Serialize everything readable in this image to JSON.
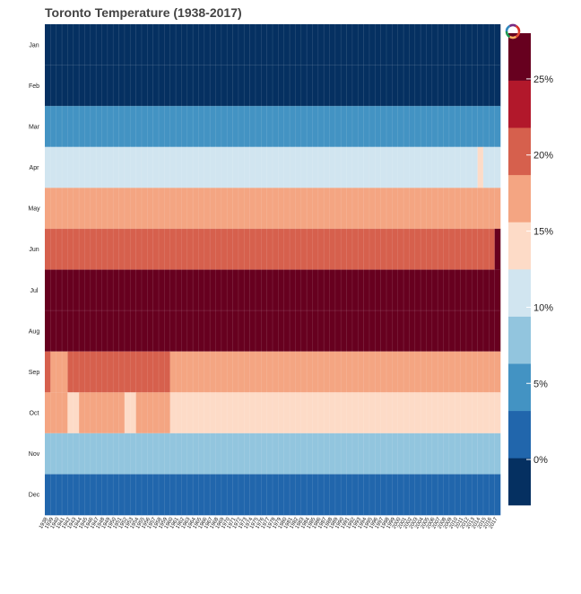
{
  "chart_data": {
    "type": "heatmap",
    "title": "Toronto Temperature (1938-2017)",
    "x_tick_labels": [
      "1938",
      "1939",
      "1940",
      "1941",
      "1942",
      "1943",
      "1944",
      "1945",
      "1946",
      "1947",
      "1948",
      "1949",
      "1950",
      "1951",
      "1952",
      "1953",
      "1954",
      "1955",
      "1956",
      "1957",
      "1958",
      "1959",
      "1960",
      "1961",
      "1962",
      "1963",
      "1964",
      "1965",
      "1966",
      "1967",
      "1968",
      "1969",
      "1970",
      "1971",
      "1972",
      "1973",
      "1974",
      "1975",
      "1976",
      "1977",
      "1978",
      "1979",
      "1980",
      "1981",
      "1982",
      "1983",
      "1984",
      "1985",
      "1986",
      "1987",
      "1988",
      "1989",
      "1990",
      "1991",
      "1992",
      "1993",
      "1994",
      "1995",
      "1996",
      "1997",
      "1998",
      "1999",
      "2000",
      "2001",
      "2002",
      "2003",
      "2004",
      "2005",
      "2006",
      "2007",
      "2008",
      "2009",
      "2010",
      "2011",
      "2012",
      "2013",
      "2014",
      "2015",
      "2016",
      "2017"
    ],
    "y_tick_labels": [
      "Jan",
      "Feb",
      "Mar",
      "Apr",
      "May",
      "Jun",
      "Jul",
      "Aug",
      "Sep",
      "Oct",
      "Nov",
      "Dec"
    ],
    "colorbar": {
      "colors": [
        "#053061",
        "#2166ac",
        "#4393c3",
        "#92c5de",
        "#d1e5f0",
        "#fddbc7",
        "#f4a582",
        "#d6604d",
        "#b2182b",
        "#67001f"
      ],
      "range": [
        -3,
        28
      ],
      "ticks": [
        0,
        5,
        10,
        15,
        20,
        25
      ],
      "tick_labels": [
        "0%",
        "5%",
        "10%",
        "15%",
        "20%",
        "25%"
      ]
    },
    "grid": true,
    "toolbar_logo": "bokeh-logo-icon",
    "months": [
      {
        "name": "Jan",
        "values": [
          -3,
          -3,
          -3,
          -3,
          -3,
          -3,
          -3,
          -3,
          -3,
          -3,
          -3,
          -3,
          -3,
          -3,
          -3,
          -3,
          -3,
          -3,
          -3,
          -3,
          -3,
          -3,
          -3,
          -3,
          -3,
          -3,
          -3,
          -3,
          -3,
          -3,
          -3,
          -3,
          -3,
          -3,
          -3,
          -3,
          -3,
          -3,
          -3,
          -3,
          -3,
          -3,
          -3,
          -3,
          -3,
          -3,
          -3,
          -3,
          -3,
          -3,
          -3,
          -3,
          -3,
          -3,
          -3,
          -3,
          -3,
          -3,
          -3,
          -3,
          -3,
          -3,
          -3,
          -3,
          -3,
          -3,
          -3,
          -3,
          -3,
          -3,
          -3,
          -3,
          -3,
          -3,
          -3,
          -3,
          -3,
          -3,
          -3,
          -3
        ]
      },
      {
        "name": "Feb",
        "values": [
          -3,
          -3,
          -3,
          -3,
          -3,
          -3,
          -3,
          -3,
          -3,
          -3,
          -3,
          -3,
          -3,
          -3,
          -3,
          -3,
          -3,
          -3,
          -3,
          -3,
          -3,
          -3,
          -3,
          -3,
          -3,
          -3,
          -3,
          -3,
          -3,
          -3,
          -3,
          -3,
          -3,
          -3,
          -3,
          -3,
          -3,
          -3,
          -3,
          -3,
          -3,
          -3,
          -3,
          -3,
          -3,
          -3,
          -3,
          -3,
          -3,
          -3,
          -3,
          -3,
          -3,
          -3,
          -3,
          -3,
          -3,
          -3,
          -3,
          -3,
          -3,
          -3,
          -3,
          -3,
          -3,
          -3,
          -3,
          -3,
          -3,
          -3,
          -3,
          -3,
          -3,
          -3,
          -3,
          -3,
          -3,
          -3,
          -3,
          -3
        ]
      },
      {
        "name": "Mar",
        "values": [
          4,
          4,
          4,
          4,
          4,
          4,
          4,
          4,
          4,
          4,
          4,
          4,
          4,
          4,
          4,
          4,
          4,
          4,
          4,
          4,
          4,
          4,
          4,
          4,
          4,
          4,
          4,
          4,
          4,
          4,
          4,
          4,
          4,
          4,
          4,
          4,
          4,
          4,
          4,
          4,
          4,
          4,
          4,
          4,
          4,
          4,
          4,
          4,
          4,
          4,
          4,
          4,
          4,
          4,
          4,
          4,
          4,
          4,
          4,
          4,
          4,
          4,
          4,
          4,
          4,
          4,
          4,
          4,
          4,
          4,
          4,
          4,
          4,
          4,
          4,
          4,
          4,
          4,
          4,
          4
        ]
      },
      {
        "name": "Apr",
        "values": [
          10,
          10,
          10,
          10,
          10,
          10,
          10,
          10,
          10,
          10,
          10,
          10,
          10,
          10,
          10,
          10,
          10,
          10,
          10,
          10,
          10,
          10,
          10,
          10,
          10,
          10,
          10,
          10,
          10,
          10,
          10,
          10,
          10,
          10,
          10,
          10,
          10,
          10,
          10,
          10,
          10,
          10,
          10,
          10,
          10,
          10,
          10,
          10,
          10,
          10,
          10,
          10,
          10,
          10,
          10,
          10,
          10,
          10,
          10,
          10,
          10,
          10,
          10,
          10,
          10,
          10,
          10,
          10,
          10,
          10,
          10,
          10,
          10,
          10,
          10,
          10,
          14,
          10,
          10,
          10
        ]
      },
      {
        "name": "May",
        "values": [
          17,
          16,
          16,
          16,
          18,
          18,
          16,
          18,
          18,
          18,
          18,
          18,
          18,
          18,
          16,
          16,
          16,
          16,
          16,
          16,
          16,
          16,
          16,
          16,
          16,
          16,
          18,
          18,
          16,
          18,
          16,
          18,
          16,
          18,
          16,
          16,
          16,
          16,
          18,
          18,
          18,
          18,
          18,
          18,
          18,
          18,
          18,
          18,
          18,
          18,
          18,
          18,
          16,
          16,
          16,
          18,
          18,
          18,
          18,
          18,
          18,
          18,
          18,
          18,
          18,
          18,
          18,
          18,
          18,
          18,
          18,
          18,
          18,
          18,
          18,
          18,
          18,
          18,
          18,
          18
        ]
      },
      {
        "name": "Jun",
        "values": [
          21,
          21,
          21,
          21,
          21,
          21,
          21,
          21,
          21,
          21,
          21,
          21,
          21,
          21,
          21,
          21,
          21,
          21,
          21,
          21,
          21,
          21,
          21,
          21,
          21,
          21,
          21,
          21,
          21,
          21,
          21,
          21,
          21,
          21,
          21,
          21,
          21,
          21,
          21,
          21,
          21,
          21,
          21,
          21,
          21,
          21,
          21,
          21,
          21,
          21,
          21,
          21,
          21,
          21,
          21,
          21,
          21,
          21,
          21,
          21,
          21,
          21,
          21,
          21,
          21,
          21,
          21,
          21,
          21,
          21,
          21,
          21,
          21,
          21,
          21,
          21,
          21,
          21,
          21,
          26
        ]
      },
      {
        "name": "Jul",
        "values": [
          26,
          26,
          26,
          26,
          26,
          26,
          26,
          26,
          26,
          26,
          26,
          26,
          26,
          26,
          26,
          26,
          26,
          26,
          26,
          26,
          26,
          26,
          26,
          26,
          26,
          26,
          26,
          26,
          26,
          26,
          26,
          26,
          26,
          26,
          26,
          26,
          26,
          26,
          26,
          26,
          26,
          26,
          26,
          26,
          26,
          26,
          26,
          26,
          26,
          26,
          26,
          26,
          26,
          26,
          26,
          26,
          26,
          26,
          26,
          26,
          26,
          26,
          26,
          26,
          26,
          26,
          26,
          26,
          26,
          26,
          26,
          26,
          26,
          26,
          26,
          26,
          26,
          26,
          26,
          26
        ]
      },
      {
        "name": "Aug",
        "values": [
          26,
          26,
          26,
          26,
          26,
          26,
          26,
          26,
          26,
          26,
          26,
          26,
          26,
          26,
          26,
          26,
          26,
          26,
          26,
          26,
          26,
          26,
          26,
          26,
          26,
          26,
          26,
          26,
          26,
          26,
          26,
          26,
          26,
          26,
          26,
          26,
          26,
          26,
          26,
          26,
          26,
          26,
          26,
          26,
          26,
          26,
          26,
          26,
          26,
          26,
          26,
          26,
          26,
          26,
          26,
          26,
          26,
          26,
          26,
          26,
          26,
          26,
          26,
          26,
          26,
          26,
          26,
          26,
          26,
          26,
          26,
          26,
          26,
          26,
          26,
          26,
          26,
          26,
          26,
          26
        ]
      },
      {
        "name": "Sep",
        "values": [
          21,
          18,
          18,
          18,
          21,
          21,
          21,
          21,
          21,
          21,
          21,
          21,
          21,
          21,
          21,
          21,
          21,
          21,
          21,
          21,
          21,
          21,
          18,
          18,
          18,
          18,
          18,
          18,
          18,
          18,
          18,
          18,
          18,
          18,
          18,
          18,
          18,
          18,
          18,
          18,
          18,
          18,
          18,
          18,
          18,
          18,
          18,
          18,
          18,
          18,
          18,
          18,
          18,
          18,
          18,
          18,
          18,
          18,
          18,
          18,
          18,
          18,
          18,
          18,
          18,
          18,
          18,
          18,
          18,
          18,
          18,
          18,
          18,
          18,
          18,
          18,
          18,
          18,
          18,
          18
        ]
      },
      {
        "name": "Oct",
        "values": [
          16,
          16,
          16,
          16,
          14,
          14,
          16,
          16,
          16,
          16,
          16,
          16,
          16,
          16,
          14,
          14,
          16,
          16,
          16,
          16,
          16,
          16,
          14,
          14,
          14,
          14,
          14,
          14,
          14,
          14,
          14,
          14,
          14,
          14,
          14,
          14,
          14,
          14,
          14,
          14,
          14,
          14,
          14,
          14,
          14,
          14,
          14,
          14,
          14,
          14,
          14,
          14,
          14,
          14,
          14,
          14,
          14,
          14,
          14,
          14,
          14,
          14,
          14,
          14,
          14,
          14,
          14,
          14,
          14,
          14,
          14,
          14,
          14,
          14,
          14,
          14,
          14,
          14,
          14,
          14
        ]
      },
      {
        "name": "Nov",
        "values": [
          7,
          7,
          7,
          7,
          7,
          7,
          7,
          7,
          7,
          7,
          7,
          7,
          7,
          7,
          7,
          7,
          7,
          7,
          7,
          7,
          7,
          7,
          7,
          7,
          7,
          7,
          7,
          7,
          7,
          7,
          7,
          7,
          7,
          7,
          7,
          7,
          7,
          7,
          7,
          7,
          7,
          7,
          7,
          7,
          7,
          7,
          7,
          7,
          7,
          7,
          7,
          7,
          7,
          7,
          7,
          7,
          7,
          7,
          7,
          7,
          7,
          7,
          7,
          7,
          7,
          7,
          7,
          7,
          7,
          7,
          7,
          7,
          7,
          7,
          7,
          7,
          7,
          7,
          7,
          7
        ]
      },
      {
        "name": "Dec",
        "values": [
          1,
          1,
          1,
          1,
          1,
          1,
          1,
          1,
          1,
          1,
          1,
          1,
          1,
          1,
          1,
          1,
          1,
          1,
          1,
          1,
          1,
          1,
          1,
          1,
          1,
          1,
          1,
          1,
          1,
          1,
          1,
          1,
          1,
          1,
          1,
          1,
          1,
          1,
          1,
          1,
          1,
          1,
          1,
          1,
          1,
          1,
          1,
          1,
          1,
          1,
          1,
          1,
          1,
          1,
          1,
          1,
          1,
          1,
          1,
          1,
          1,
          1,
          1,
          1,
          1,
          1,
          1,
          1,
          1,
          1,
          1,
          1,
          1,
          1,
          1,
          1,
          1,
          1,
          1,
          1
        ]
      }
    ]
  }
}
